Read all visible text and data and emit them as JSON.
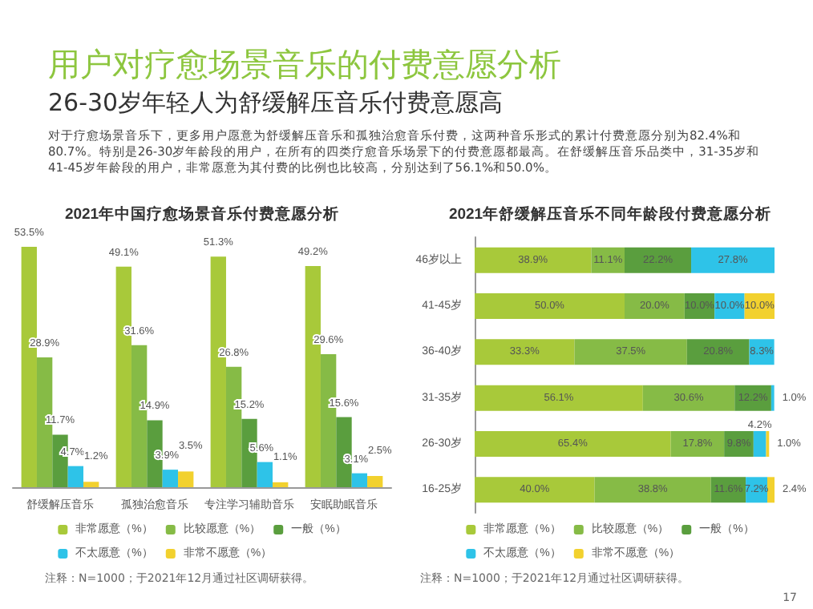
{
  "chart_data": [
    {
      "type": "other",
      "title": "用户对疗愈场景音乐的付费意愿分析",
      "subtitle": "26-30岁年轻人为舒缓解压音乐付费意愿高",
      "annotations": [
        "对于疗愈场景音乐下，更多用户愿意为舒缓解压音乐和孤独治愈音乐付费，这两种音乐形式的累计付费意愿分别为82.4%和80.7%。特别是26-30岁年龄段的用户，在所有的四类疗愈音乐场景下的付费意愿都最高。在舒缓解压音乐品类中，31-35岁和41-45岁年龄段的用户，非常愿意为其付费的比例也比较高，分别达到了56.1%和50.0%。"
      ]
    },
    {
      "type": "bar",
      "title": "2021年中国疗愈场景音乐付费意愿分析",
      "categories": [
        "舒缓解压音乐",
        "孤独治愈音乐",
        "专注学习辅助音乐",
        "安眠助眠音乐"
      ],
      "legend": "bottom",
      "annotations": [
        "注释：N=1000；于2021年12月通过社区调研获得。"
      ],
      "series": [
        {
          "name": "非常愿意（%）",
          "color": "#a8c93a",
          "values": [
            53.5,
            49.1,
            51.3,
            49.2
          ],
          "value_labels": [
            "53.5%",
            "49.1%",
            "51.3%",
            "49.2%"
          ]
        },
        {
          "name": "比较愿意（%）",
          "color": "#86bb46",
          "values": [
            28.9,
            31.6,
            26.8,
            29.6
          ],
          "value_labels": [
            "28.9%",
            "31.6%",
            "26.8%",
            "29.6%"
          ]
        },
        {
          "name": "一般（%）",
          "color": "#5a9e3e",
          "values": [
            11.7,
            14.9,
            15.2,
            15.6
          ],
          "value_labels": [
            "11.7%",
            "14.9%",
            "15.2%",
            "15.6%"
          ]
        },
        {
          "name": "不太愿意（%）",
          "color": "#2ec3e8",
          "values": [
            4.7,
            3.9,
            5.6,
            3.1
          ],
          "value_labels": [
            "4.7%",
            "3.9%",
            "5.6%",
            "3.1%"
          ]
        },
        {
          "name": "非常不愿意（%）",
          "color": "#f2d12e",
          "values": [
            1.2,
            3.5,
            1.1,
            2.5
          ],
          "value_labels": [
            "1.2%",
            "3.5%",
            "1.1%",
            "2.5%"
          ]
        }
      ]
    },
    {
      "type": "bar",
      "orientation": "horizontal",
      "stacked": true,
      "title": "2021年舒缓解压音乐不同年龄段付费意愿分析",
      "categories": [
        "46岁以上",
        "41-45岁",
        "36-40岁",
        "31-35岁",
        "26-30岁",
        "16-25岁"
      ],
      "legend": "bottom",
      "annotations": [
        "注释：N=1000；于2021年12月通过社区调研获得。",
        "17"
      ],
      "series": [
        {
          "name": "非常愿意（%）",
          "color": "#a8c93a",
          "values": [
            38.9,
            50.0,
            33.3,
            56.1,
            65.4,
            40.0
          ],
          "value_labels": [
            "38.9%",
            "50.0%",
            "33.3%",
            "56.1%",
            "65.4%",
            "40.0%"
          ]
        },
        {
          "name": "比较愿意（%）",
          "color": "#86bb46",
          "values": [
            11.1,
            20.0,
            37.5,
            30.6,
            17.8,
            38.8
          ],
          "value_labels": [
            "11.1%",
            "20.0%",
            "37.5%",
            "30.6%",
            "17.8%",
            "38.8%"
          ]
        },
        {
          "name": "一般（%）",
          "color": "#5a9e3e",
          "values": [
            22.2,
            10.0,
            20.8,
            12.2,
            9.8,
            11.6
          ],
          "value_labels": [
            "22.2%",
            "10.0%",
            "20.8%",
            "12.2%",
            "9.8%",
            "11.6%"
          ]
        },
        {
          "name": "不太愿意（%）",
          "color": "#2ec3e8",
          "values": [
            27.8,
            10.0,
            8.3,
            1.0,
            4.2,
            7.2
          ],
          "value_labels": [
            "27.8%",
            "10.0%",
            "8.3%",
            "1.0%",
            "4.2%",
            "7.2%"
          ]
        },
        {
          "name": "非常不愿意（%）",
          "color": "#f2d12e",
          "values": [
            null,
            10.0,
            null,
            null,
            1.0,
            2.4
          ],
          "value_labels": [
            null,
            "10.0%",
            null,
            null,
            "1.0%",
            "2.4%"
          ]
        }
      ]
    }
  ]
}
